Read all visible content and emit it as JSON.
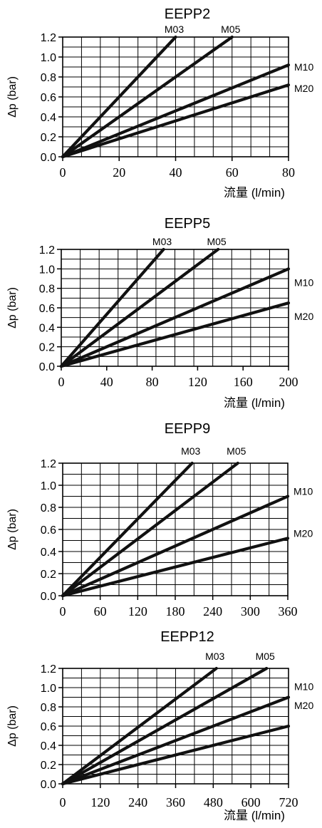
{
  "chart_data": [
    {
      "type": "line",
      "title": "EEPP2",
      "xlabel": "流量 (l/min)",
      "ylabel": "Δp (bar)",
      "xlim": [
        0,
        80
      ],
      "ylim": [
        0,
        1.2
      ],
      "x_ticks": [
        "0",
        "20",
        "40",
        "60",
        "80"
      ],
      "y_ticks": [
        "0.0",
        "0.2",
        "0.4",
        "0.6",
        "0.8",
        "1.0",
        "1.2"
      ],
      "grid": true,
      "series": [
        {
          "name": "M03",
          "x": [
            0,
            40
          ],
          "y": [
            0,
            1.2
          ]
        },
        {
          "name": "M05",
          "x": [
            0,
            60
          ],
          "y": [
            0,
            1.2
          ]
        },
        {
          "name": "M10",
          "x": [
            0,
            80
          ],
          "y": [
            0,
            0.92
          ]
        },
        {
          "name": "M20",
          "x": [
            0,
            80
          ],
          "y": [
            0,
            0.72
          ]
        }
      ]
    },
    {
      "type": "line",
      "title": "EEPP5",
      "xlabel": "流量 (l/min)",
      "ylabel": "Δp (bar)",
      "xlim": [
        0,
        200
      ],
      "ylim": [
        0,
        1.2
      ],
      "x_ticks": [
        "0",
        "40",
        "80",
        "120",
        "160",
        "200"
      ],
      "y_ticks": [
        "0.0",
        "0.2",
        "0.4",
        "0.6",
        "0.8",
        "1.0",
        "1.2"
      ],
      "grid": true,
      "series": [
        {
          "name": "M03",
          "x": [
            0,
            90
          ],
          "y": [
            0,
            1.2
          ]
        },
        {
          "name": "M05",
          "x": [
            0,
            138
          ],
          "y": [
            0,
            1.2
          ]
        },
        {
          "name": "M10",
          "x": [
            0,
            200
          ],
          "y": [
            0,
            1.0
          ]
        },
        {
          "name": "M20",
          "x": [
            0,
            200
          ],
          "y": [
            0,
            0.65
          ]
        }
      ]
    },
    {
      "type": "line",
      "title": "EEPP9",
      "xlabel": "流量 (l/min)",
      "ylabel": "Δp (bar)",
      "xlim": [
        0,
        360
      ],
      "ylim": [
        0,
        1.2
      ],
      "x_ticks": [
        "0",
        "60",
        "120",
        "180",
        "240",
        "300",
        "360"
      ],
      "y_ticks": [
        "0.0",
        "0.2",
        "0.4",
        "0.6",
        "0.8",
        "1.0",
        "1.2"
      ],
      "grid": true,
      "series": [
        {
          "name": "M03",
          "x": [
            0,
            207
          ],
          "y": [
            0,
            1.2
          ]
        },
        {
          "name": "M05",
          "x": [
            0,
            280
          ],
          "y": [
            0,
            1.2
          ]
        },
        {
          "name": "M10",
          "x": [
            0,
            360
          ],
          "y": [
            0,
            0.9
          ]
        },
        {
          "name": "M20",
          "x": [
            0,
            360
          ],
          "y": [
            0,
            0.52
          ]
        }
      ]
    },
    {
      "type": "line",
      "title": "EEPP12",
      "xlabel": "流量 (l/min)",
      "ylabel": "Δp (bar)",
      "xlim": [
        0,
        720
      ],
      "ylim": [
        0,
        1.2
      ],
      "x_ticks": [
        "0",
        "120",
        "240",
        "360",
        "480",
        "600",
        "720"
      ],
      "y_ticks": [
        "0.0",
        "0.2",
        "0.4",
        "0.6",
        "0.8",
        "1.0",
        "1.2"
      ],
      "grid": true,
      "series": [
        {
          "name": "M03",
          "x": [
            0,
            490
          ],
          "y": [
            0,
            1.2
          ]
        },
        {
          "name": "M05",
          "x": [
            0,
            650
          ],
          "y": [
            0,
            1.2
          ]
        },
        {
          "name": "M10",
          "x": [
            0,
            720
          ],
          "y": [
            0,
            0.9
          ]
        },
        {
          "name": "M20",
          "x": [
            0,
            720
          ],
          "y": [
            0,
            0.6
          ]
        }
      ]
    }
  ]
}
